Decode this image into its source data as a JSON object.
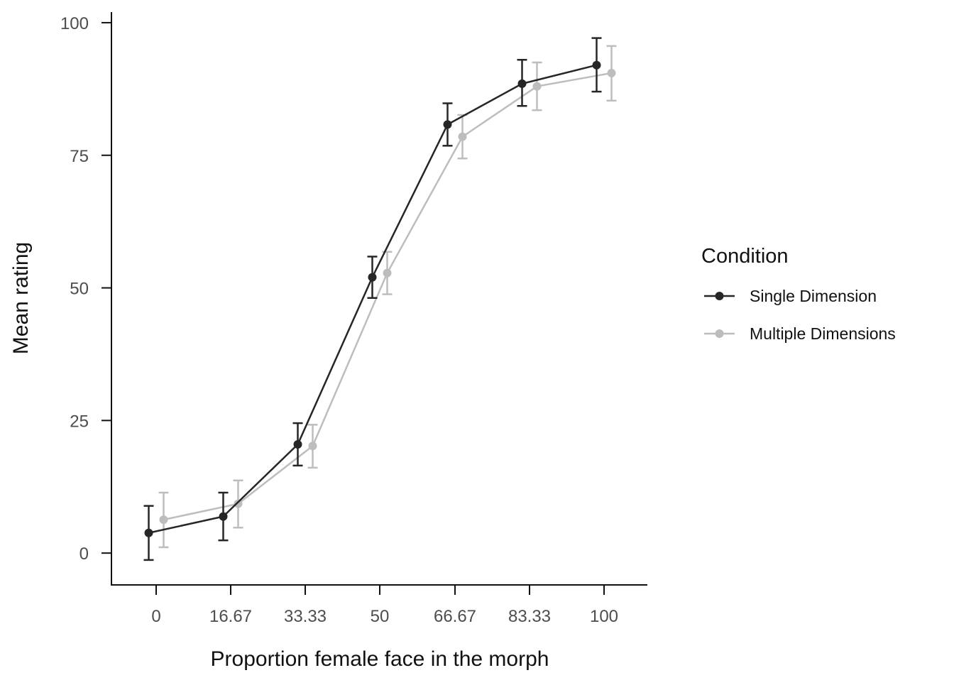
{
  "chart_data": {
    "type": "line",
    "title": "",
    "xlabel": "Proportion female face in the morph",
    "ylabel": "Mean rating",
    "categories": [
      "0",
      "16.67",
      "33.33",
      "50",
      "66.67",
      "83.33",
      "100"
    ],
    "ylim": [
      -6,
      102
    ],
    "yticks": [
      0,
      25,
      50,
      75,
      100
    ],
    "grid": false,
    "legend": {
      "title": "Condition",
      "placement": "right"
    },
    "series": [
      {
        "name": "Single Dimension",
        "color": "#262626",
        "values": [
          3.8,
          6.9,
          20.5,
          52.0,
          80.8,
          88.5,
          92.0
        ],
        "err_low": [
          -1.3,
          2.4,
          16.5,
          48.1,
          76.8,
          84.3,
          87.0
        ],
        "err_high": [
          8.9,
          11.4,
          24.5,
          55.9,
          84.8,
          93.0,
          97.1
        ]
      },
      {
        "name": "Multiple Dimensions",
        "color": "#bdbdbd",
        "values": [
          6.3,
          9.3,
          20.2,
          52.8,
          78.5,
          88.0,
          90.5
        ],
        "err_low": [
          1.1,
          4.8,
          16.1,
          48.8,
          74.4,
          83.5,
          85.3
        ],
        "err_high": [
          11.4,
          13.7,
          24.2,
          56.8,
          82.6,
          92.5,
          95.6
        ]
      }
    ]
  }
}
